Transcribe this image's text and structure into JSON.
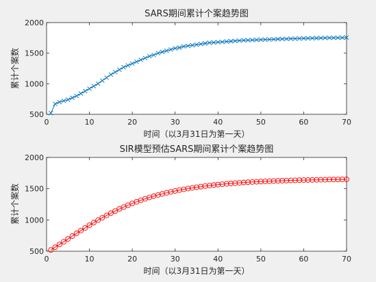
{
  "figure": {
    "background": "#f0f0f0"
  },
  "chart_data": [
    {
      "type": "line",
      "title": "SARS期间累计个案趋势图",
      "xlabel": "时间（以3月31日为第一天）",
      "ylabel": "累计个案数",
      "xlim": [
        0,
        70
      ],
      "ylim": [
        500,
        2000
      ],
      "xticks": [
        0,
        10,
        20,
        30,
        40,
        50,
        60,
        70
      ],
      "yticks": [
        500,
        1000,
        1500,
        2000
      ],
      "grid": false,
      "marker": "x",
      "color": "#0072bd",
      "series": [
        {
          "x": [
            1,
            2,
            3,
            4,
            5,
            6,
            7,
            8,
            9,
            10,
            11,
            12,
            13,
            14,
            15,
            16,
            17,
            18,
            19,
            20,
            21,
            22,
            23,
            24,
            25,
            26,
            27,
            28,
            29,
            30,
            31,
            32,
            33,
            34,
            35,
            36,
            37,
            38,
            39,
            40,
            41,
            42,
            43,
            44,
            45,
            46,
            47,
            48,
            49,
            50,
            51,
            52,
            53,
            54,
            55,
            56,
            57,
            58,
            59,
            60,
            61,
            62,
            63,
            64,
            65,
            66,
            67,
            68,
            69,
            70
          ],
          "values": [
            520,
            670,
            700,
            720,
            740,
            770,
            800,
            840,
            880,
            920,
            960,
            1000,
            1050,
            1100,
            1150,
            1190,
            1230,
            1270,
            1300,
            1330,
            1360,
            1390,
            1420,
            1450,
            1470,
            1500,
            1520,
            1540,
            1560,
            1580,
            1590,
            1610,
            1620,
            1630,
            1640,
            1650,
            1660,
            1670,
            1675,
            1680,
            1685,
            1690,
            1695,
            1700,
            1705,
            1710,
            1712,
            1715,
            1718,
            1720,
            1722,
            1725,
            1727,
            1730,
            1732,
            1734,
            1736,
            1738,
            1740,
            1742,
            1743,
            1745,
            1746,
            1748,
            1749,
            1750,
            1751,
            1752,
            1753,
            1755
          ]
        }
      ]
    },
    {
      "type": "line",
      "title": "SIR模型预估SARS期间累计个案趋势图",
      "xlabel": "时间（以3月31日为第一天）",
      "ylabel": "累计个案数",
      "xlim": [
        0,
        70
      ],
      "ylim": [
        500,
        2000
      ],
      "xticks": [
        0,
        10,
        20,
        30,
        40,
        50,
        60,
        70
      ],
      "yticks": [
        500,
        1000,
        1500,
        2000
      ],
      "grid": false,
      "marker": "o",
      "color": "#ff0000",
      "series": [
        {
          "x": [
            1,
            2,
            3,
            4,
            5,
            6,
            7,
            8,
            9,
            10,
            11,
            12,
            13,
            14,
            15,
            16,
            17,
            18,
            19,
            20,
            21,
            22,
            23,
            24,
            25,
            26,
            27,
            28,
            29,
            30,
            31,
            32,
            33,
            34,
            35,
            36,
            37,
            38,
            39,
            40,
            41,
            42,
            43,
            44,
            45,
            46,
            47,
            48,
            49,
            50,
            51,
            52,
            53,
            54,
            55,
            56,
            57,
            58,
            59,
            60,
            61,
            62,
            63,
            64,
            65,
            66,
            67,
            68,
            69,
            70
          ],
          "values": [
            520,
            563,
            607,
            651,
            696,
            741,
            786,
            830,
            873,
            915,
            957,
            997,
            1036,
            1073,
            1109,
            1143,
            1176,
            1207,
            1236,
            1264,
            1290,
            1315,
            1338,
            1360,
            1380,
            1399,
            1417,
            1434,
            1449,
            1464,
            1478,
            1490,
            1502,
            1513,
            1523,
            1533,
            1542,
            1550,
            1558,
            1565,
            1572,
            1578,
            1584,
            1589,
            1594,
            1599,
            1603,
            1607,
            1611,
            1614,
            1617,
            1620,
            1623,
            1626,
            1628,
            1630,
            1632,
            1634,
            1636,
            1638,
            1639,
            1641,
            1642,
            1643,
            1645,
            1646,
            1647,
            1648,
            1649,
            1650
          ]
        }
      ]
    }
  ]
}
